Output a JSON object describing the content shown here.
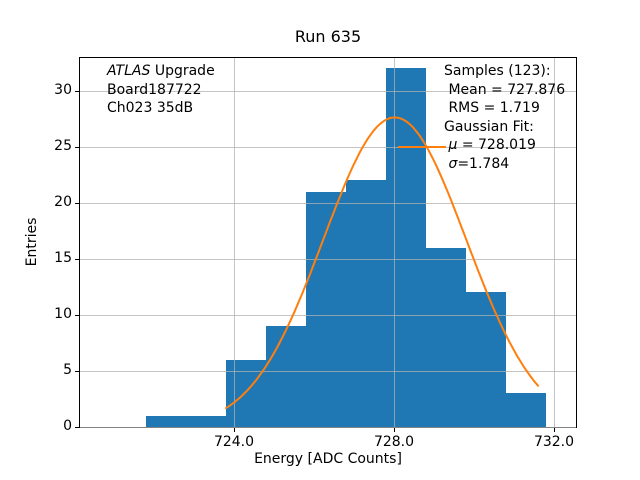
{
  "colors": {
    "bar": "#1f77b4",
    "fit": "#ff7f0e",
    "grid": "#b0b0b0",
    "spine": "#000000",
    "background": "#ffffff"
  },
  "chart_data": {
    "type": "bar",
    "title": "Run 635",
    "xlabel": "Energy [ADC Counts]",
    "ylabel": "Entries",
    "xlim": [
      720.15,
      732.55
    ],
    "ylim": [
      0,
      32.9
    ],
    "xticks": [
      724.0,
      728.0,
      732.0
    ],
    "xtick_labels": [
      "724.0",
      "728.0",
      "732.0"
    ],
    "yticks": [
      0,
      5,
      10,
      15,
      20,
      25,
      30
    ],
    "ytick_labels": [
      "0",
      "5",
      "10",
      "15",
      "20",
      "25",
      "30"
    ],
    "grid": true,
    "legend_position": "none",
    "histogram": {
      "bin_edges": [
        721.8,
        722.8,
        723.8,
        724.8,
        725.8,
        726.8,
        727.8,
        728.8,
        729.8,
        730.8,
        731.8
      ],
      "counts": [
        1,
        1,
        6,
        9,
        21,
        22,
        32,
        16,
        12,
        3
      ]
    },
    "gaussian_fit": {
      "mu": 728.019,
      "sigma": 1.784,
      "amplitude": 27.6,
      "x_start": 723.8,
      "x_end": 731.6
    },
    "stats": {
      "samples": 123,
      "mean": 727.876,
      "rms": 1.719
    }
  },
  "annotations": {
    "left": {
      "lines": [
        [
          {
            "t": "ATLAS",
            "i": true
          },
          {
            "t": " Upgrade"
          }
        ],
        [
          {
            "t": "Board187722"
          }
        ],
        [
          {
            "t": "Ch023 35dB"
          }
        ]
      ]
    },
    "right": {
      "lines": [
        [
          {
            "t": "Samples (123):"
          }
        ],
        [
          {
            "t": " Mean = 727.876"
          }
        ],
        [
          {
            "t": " RMS = 1.719"
          }
        ],
        [
          {
            "t": "Gaussian Fit:"
          }
        ],
        [
          {
            "t": " "
          },
          {
            "t": "μ",
            "i": true
          },
          {
            "t": " = 728.019"
          }
        ],
        [
          {
            "t": " "
          },
          {
            "t": "σ",
            "i": true
          },
          {
            "t": "=1.784"
          }
        ]
      ]
    }
  }
}
